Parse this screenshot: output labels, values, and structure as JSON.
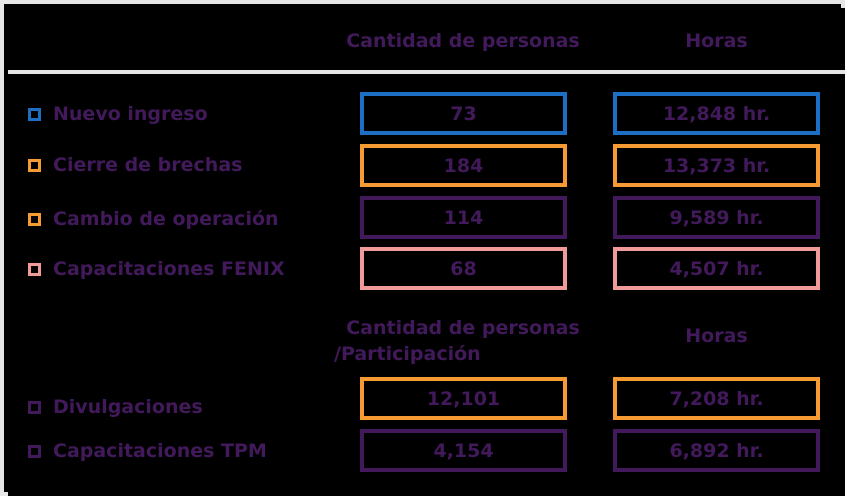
{
  "colors": {
    "text": "#42195a",
    "blue": "#1d6fc4",
    "orange": "#f59b32",
    "pink": "#f09a9a",
    "purple": "#42195a"
  },
  "header": {
    "col1": "Cantidad de personas",
    "col2": "Horas"
  },
  "section1": {
    "rows": [
      {
        "label": "Nuevo ingreso",
        "personas": "73",
        "horas": "12,848 hr.",
        "color": "#1d6fc4"
      },
      {
        "label": "Cierre de brechas",
        "personas": "184",
        "horas": "13,373 hr.",
        "color": "#f59b32"
      },
      {
        "label": "Cambio de operación",
        "personas": "114",
        "horas": "9,589 hr.",
        "color": "#f59b32"
      },
      {
        "label": "Capacitaciones FENIX",
        "personas": "68",
        "horas": "4,507 hr.",
        "color": "#f09a9a"
      }
    ]
  },
  "section2": {
    "col1_line1": "Cantidad de personas",
    "col1_line2": "/Participación",
    "col2": "Horas",
    "rows": [
      {
        "label": "Divulgaciones",
        "personas": "12,101",
        "horas": "7,208 hr.",
        "color": "#42195a"
      },
      {
        "label": "Capacitaciones TPM",
        "personas": "4,154",
        "horas": "6,892 hr.",
        "color": "#42195a"
      }
    ]
  }
}
